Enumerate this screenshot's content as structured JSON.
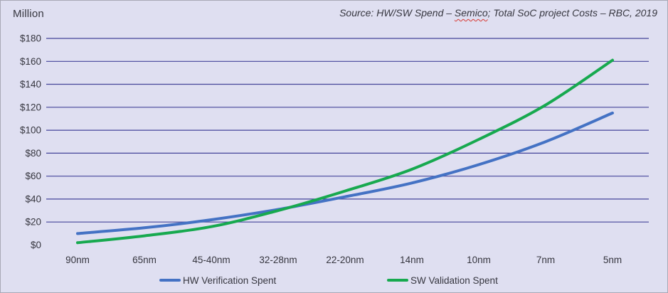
{
  "panel": {
    "unit_label": "Million",
    "source": {
      "prefix": "Source: HW/SW Spend – ",
      "flagged_word": "Semico",
      "suffix": "; Total SoC project Costs – RBC, 2019"
    }
  },
  "colors": {
    "background": "#dfdff1",
    "border": "#a9a9b6",
    "gridline": "#45459a",
    "text": "#36363f",
    "hw_line": "#4472c4",
    "sw_line": "#17a94f",
    "squiggle": "#d83a32"
  },
  "chart_data": {
    "type": "line",
    "title": "Million",
    "categories": [
      "90nm",
      "65nm",
      "45-40nm",
      "32-28nm",
      "22-20nm",
      "14nm",
      "10nm",
      "7nm",
      "5nm"
    ],
    "series": [
      {
        "name": "HW Verification Spent",
        "color": "#4472c4",
        "values": [
          10,
          15,
          22,
          31,
          42,
          54,
          70,
          90,
          115
        ]
      },
      {
        "name": "SW Validation Spent",
        "color": "#17a94f",
        "values": [
          2,
          8,
          16,
          30,
          47,
          66,
          92,
          122,
          161
        ]
      }
    ],
    "xlabel": "",
    "ylabel": "Million",
    "ylim": [
      0,
      180
    ],
    "y_tick_step": 20,
    "y_tick_prefix": "$",
    "y_tick_labels": [
      "$0",
      "$20",
      "$40",
      "$60",
      "$80",
      "$100",
      "$120",
      "$140",
      "$160",
      "$180"
    ],
    "grid": "horizontal",
    "grid_at_zero": false,
    "line_style": "smooth",
    "legend_position": "bottom"
  }
}
